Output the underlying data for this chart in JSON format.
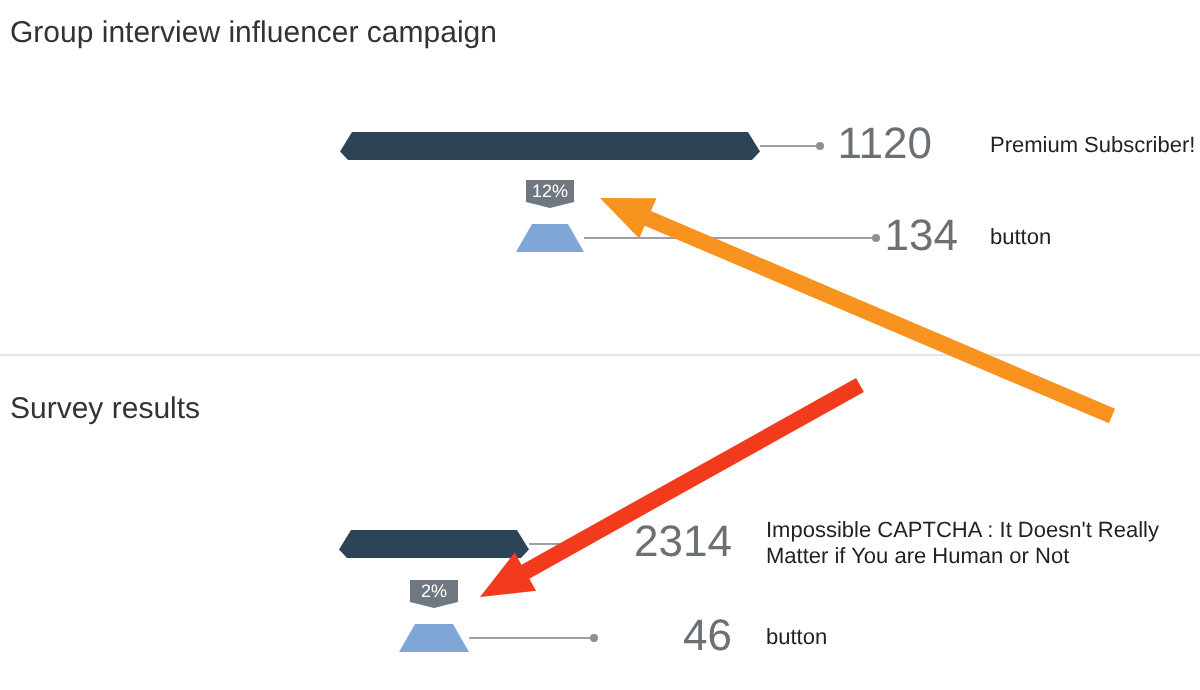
{
  "chart_data": [
    {
      "type": "other",
      "title": "Group interview influencer campaign",
      "categories": [
        "Premium Subscriber!",
        "button"
      ],
      "values": [
        1120,
        134
      ],
      "colors": [
        "#2d4356",
        "#7ea7d8"
      ],
      "data_labels": true,
      "annotations": [
        "12%"
      ]
    },
    {
      "type": "other",
      "title": "Survey results",
      "categories": [
        "Impossible CAPTCHA : It Doesn't Really Matter if You are Human or Not",
        "button"
      ],
      "values": [
        2314,
        46
      ],
      "colors": [
        "#2d4356",
        "#7ea7d8"
      ],
      "data_labels": true,
      "annotations": [
        "2%"
      ]
    }
  ]
}
